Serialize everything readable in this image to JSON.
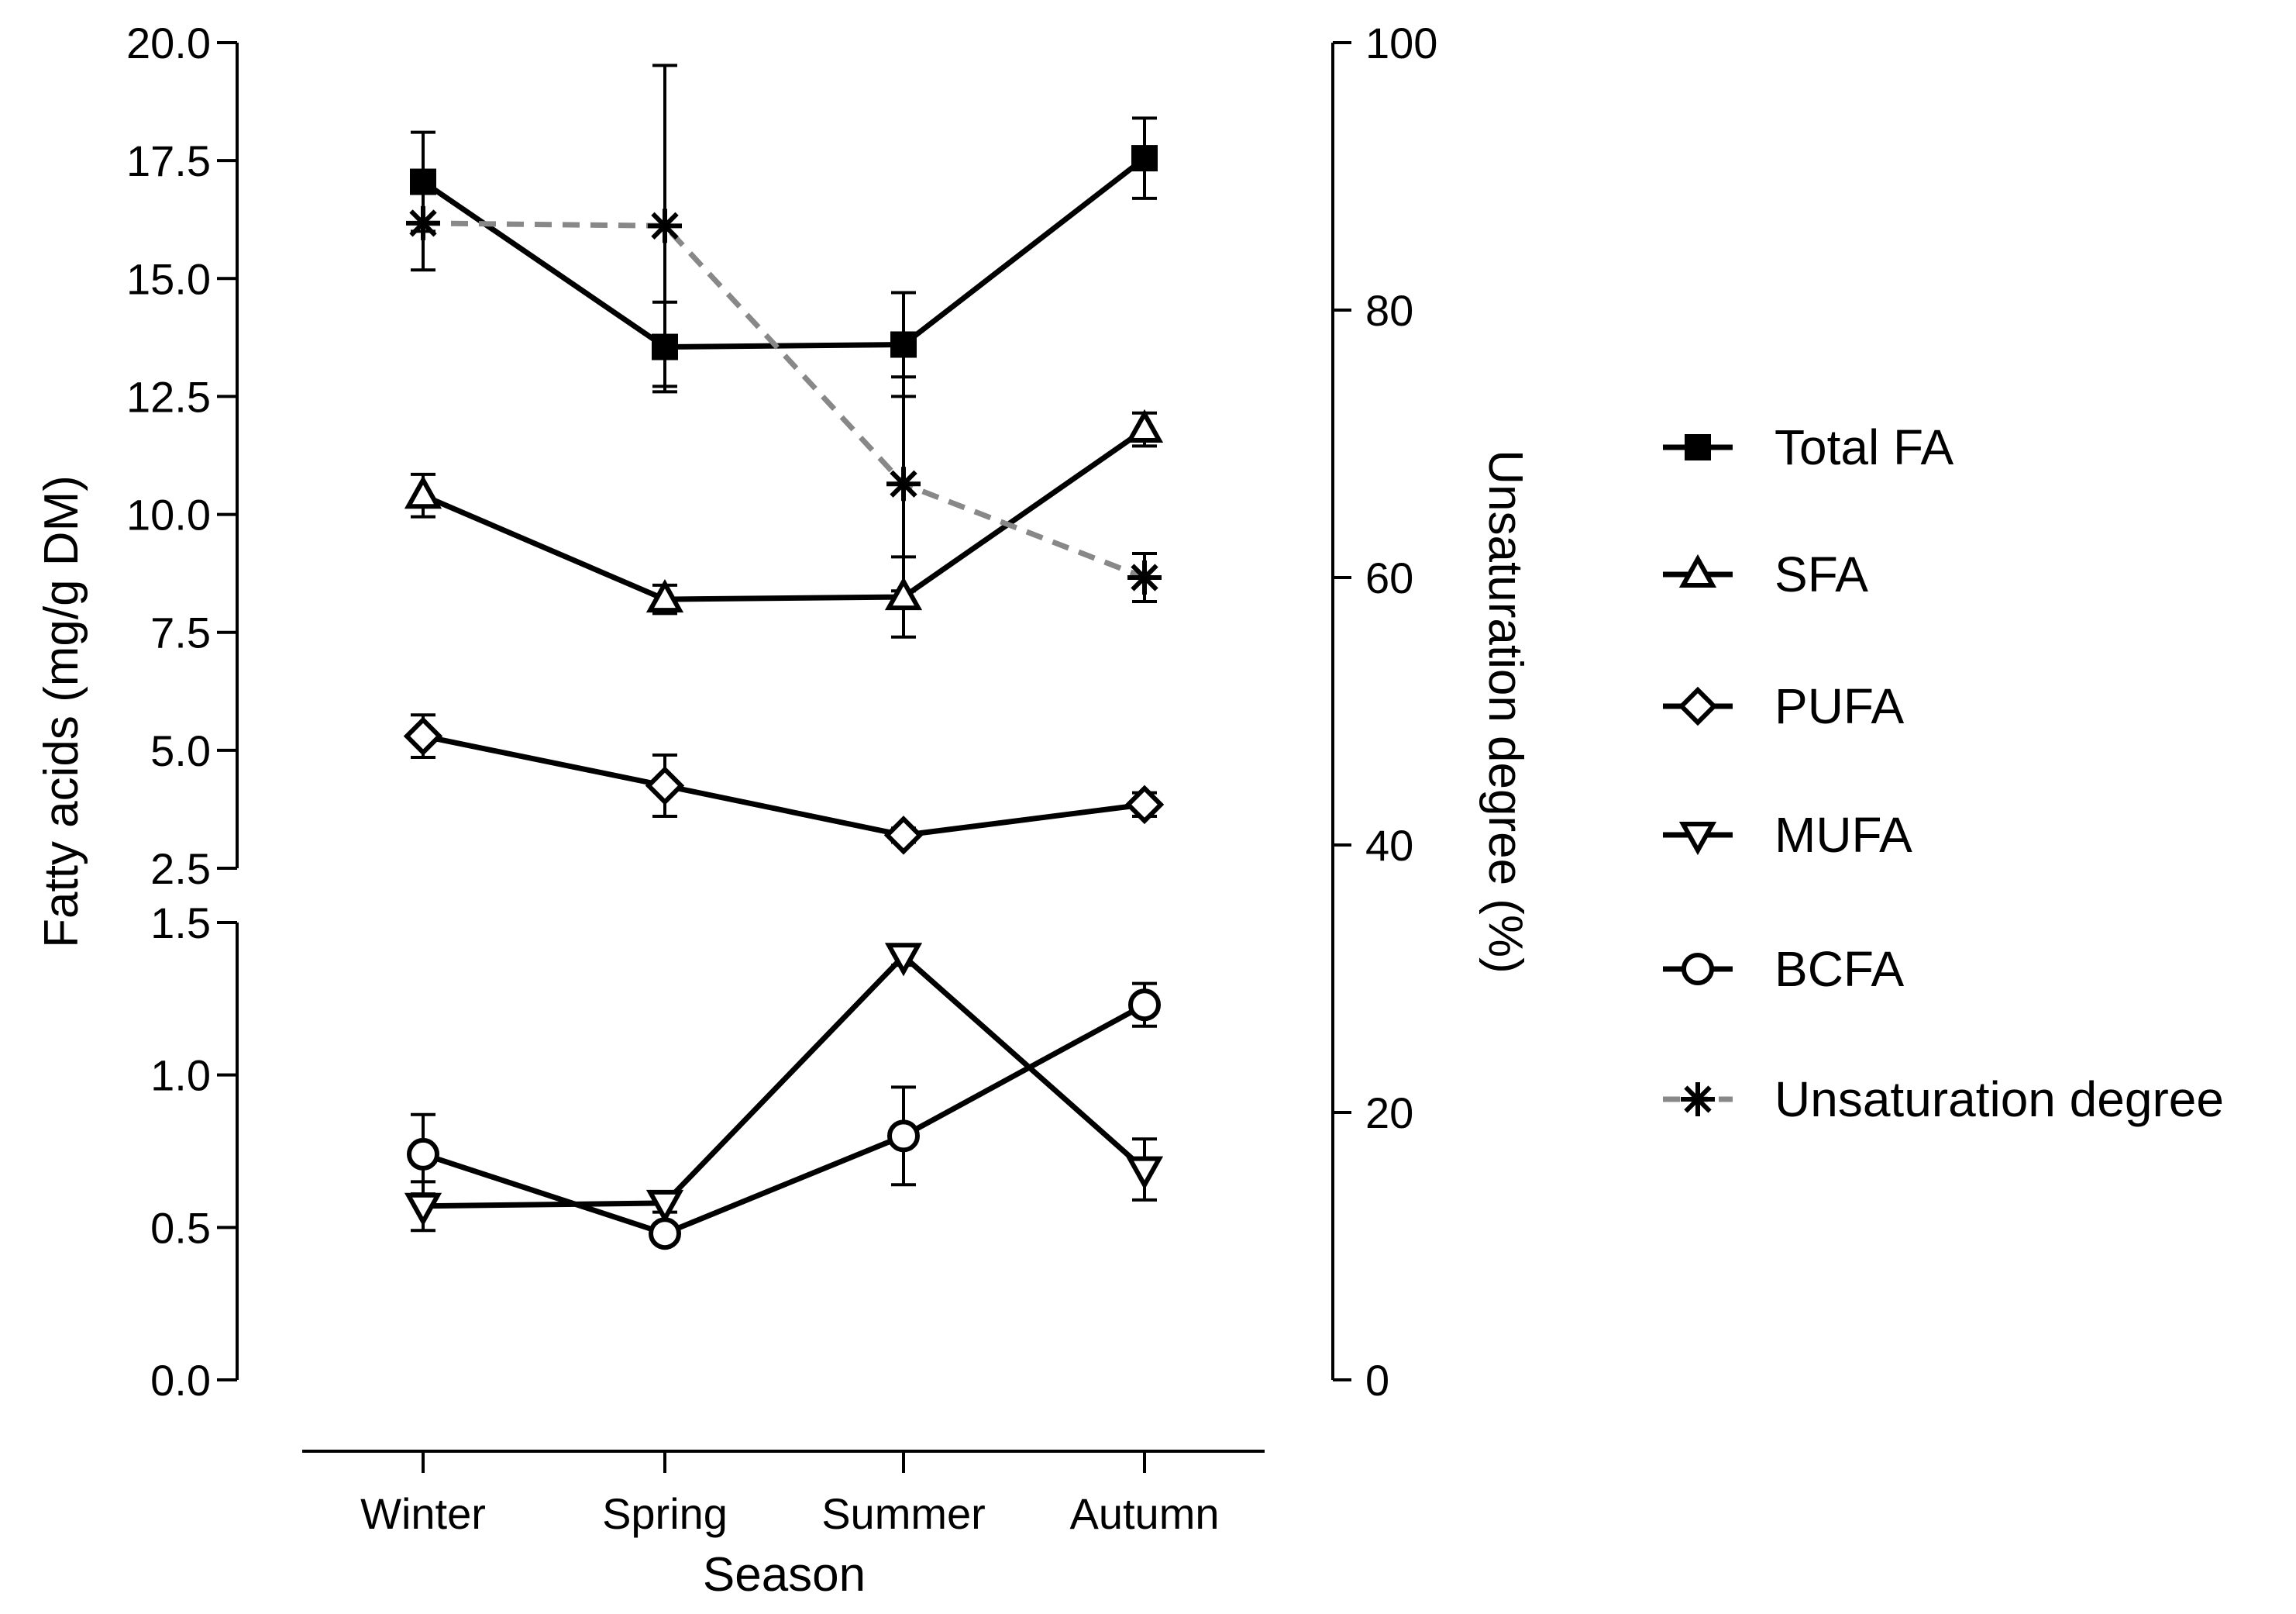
{
  "chart_data": {
    "type": "line",
    "categories": [
      "Winter",
      "Spring",
      "Summer",
      "Autumn"
    ],
    "xlabel": "Season",
    "ylabel": "Fatty acids (mg/g DM)",
    "y2label": "Unsaturation degree (%)",
    "y_upper_ticks": [
      "2.5",
      "5.0",
      "7.5",
      "10.0",
      "12.5",
      "15.0",
      "17.5",
      "20.0"
    ],
    "y_lower_ticks": [
      "0.0",
      "0.5",
      "1.0",
      "1.5"
    ],
    "y2_ticks": [
      "0",
      "20",
      "40",
      "60",
      "80",
      "100"
    ],
    "ylim_upper": [
      2.5,
      20.0
    ],
    "ylim_lower": [
      0.0,
      1.5
    ],
    "y2lim": [
      0,
      100
    ],
    "axis_break": "between 1.5 and 2.5",
    "legend_position": "right",
    "series": [
      {
        "key": "total",
        "name": "Total FA",
        "axis": "left",
        "marker": "square",
        "line": "solid",
        "color": "#000000",
        "values": [
          17.05,
          13.55,
          13.6,
          17.55
        ],
        "errors": [
          1.05,
          0.95,
          1.1,
          0.85
        ]
      },
      {
        "key": "sfa",
        "name": "SFA",
        "axis": "left",
        "marker": "triangle-up",
        "line": "solid",
        "color": "#000000",
        "values": [
          10.4,
          8.2,
          8.25,
          11.8
        ],
        "errors": [
          0.45,
          0.3,
          0.85,
          0.35
        ]
      },
      {
        "key": "pufa",
        "name": "PUFA",
        "axis": "left",
        "marker": "diamond",
        "line": "solid",
        "color": "#000000",
        "values": [
          5.3,
          4.25,
          3.2,
          3.85
        ],
        "errors": [
          0.45,
          0.65,
          0.15,
          0.25
        ]
      },
      {
        "key": "mufa",
        "name": "MUFA",
        "axis": "left",
        "marker": "triangle-down",
        "line": "solid",
        "color": "#000000",
        "values": [
          0.57,
          0.58,
          1.39,
          0.69
        ],
        "errors": [
          0.08,
          0.03,
          0.03,
          0.1
        ]
      },
      {
        "key": "bcfa",
        "name": "BCFA",
        "axis": "left",
        "marker": "circle",
        "line": "solid",
        "color": "#000000",
        "values": [
          0.74,
          0.48,
          0.8,
          1.23
        ],
        "errors": [
          0.13,
          0.03,
          0.16,
          0.07
        ]
      },
      {
        "key": "unsat",
        "name": "Unsaturation degree",
        "axis": "right",
        "marker": "asterisk",
        "line": "dashed",
        "color": "#888888",
        "values": [
          86.5,
          86.3,
          67.0,
          60.0
        ],
        "errors": [
          3.5,
          12.0,
          8.0,
          1.8
        ]
      }
    ]
  }
}
